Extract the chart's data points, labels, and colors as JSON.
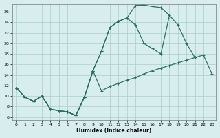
{
  "xlabel": "Humidex (Indice chaleur)",
  "bg_color": "#d8eeee",
  "grid_color": "#aacece",
  "line_color": "#2e6e62",
  "xlim": [
    -0.5,
    23.5
  ],
  "ylim": [
    5.5,
    27.5
  ],
  "xticks": [
    0,
    1,
    2,
    3,
    4,
    5,
    6,
    7,
    8,
    9,
    10,
    11,
    12,
    13,
    14,
    15,
    16,
    17,
    18,
    19,
    20,
    21,
    22,
    23
  ],
  "yticks": [
    6,
    8,
    10,
    12,
    14,
    16,
    18,
    20,
    22,
    24,
    26
  ],
  "line1_x": [
    0,
    1,
    2,
    3,
    4,
    5,
    6,
    7,
    8,
    9,
    10,
    11,
    12,
    13,
    14,
    15,
    16,
    17,
    18,
    19,
    20,
    21
  ],
  "line1_y": [
    11.5,
    9.8,
    9.0,
    10.0,
    7.5,
    7.2,
    7.0,
    6.3,
    9.8,
    14.8,
    18.5,
    23.0,
    24.2,
    24.8,
    27.2,
    27.3,
    27.0,
    26.8,
    25.3,
    23.5,
    20.0,
    17.3
  ],
  "line2_x": [
    0,
    1,
    2,
    3,
    4,
    5,
    6,
    7,
    8,
    9,
    10,
    11,
    12,
    13,
    14,
    15,
    16,
    17,
    18
  ],
  "line2_y": [
    11.5,
    9.8,
    9.0,
    10.0,
    7.5,
    7.2,
    7.0,
    6.3,
    9.8,
    14.8,
    18.5,
    23.0,
    24.2,
    24.8,
    23.5,
    20.0,
    19.0,
    18.0,
    25.3
  ],
  "line3_x": [
    0,
    1,
    2,
    3,
    4,
    5,
    6,
    7,
    8,
    9,
    10,
    11,
    12,
    13,
    14,
    15,
    16,
    17,
    18,
    19,
    20,
    21,
    22,
    23
  ],
  "line3_y": [
    11.5,
    9.8,
    9.0,
    10.0,
    7.5,
    7.2,
    7.0,
    6.3,
    9.8,
    14.8,
    11.0,
    11.8,
    12.4,
    13.0,
    13.5,
    14.2,
    14.8,
    15.3,
    15.8,
    16.3,
    16.8,
    17.3,
    17.8,
    14.2
  ]
}
